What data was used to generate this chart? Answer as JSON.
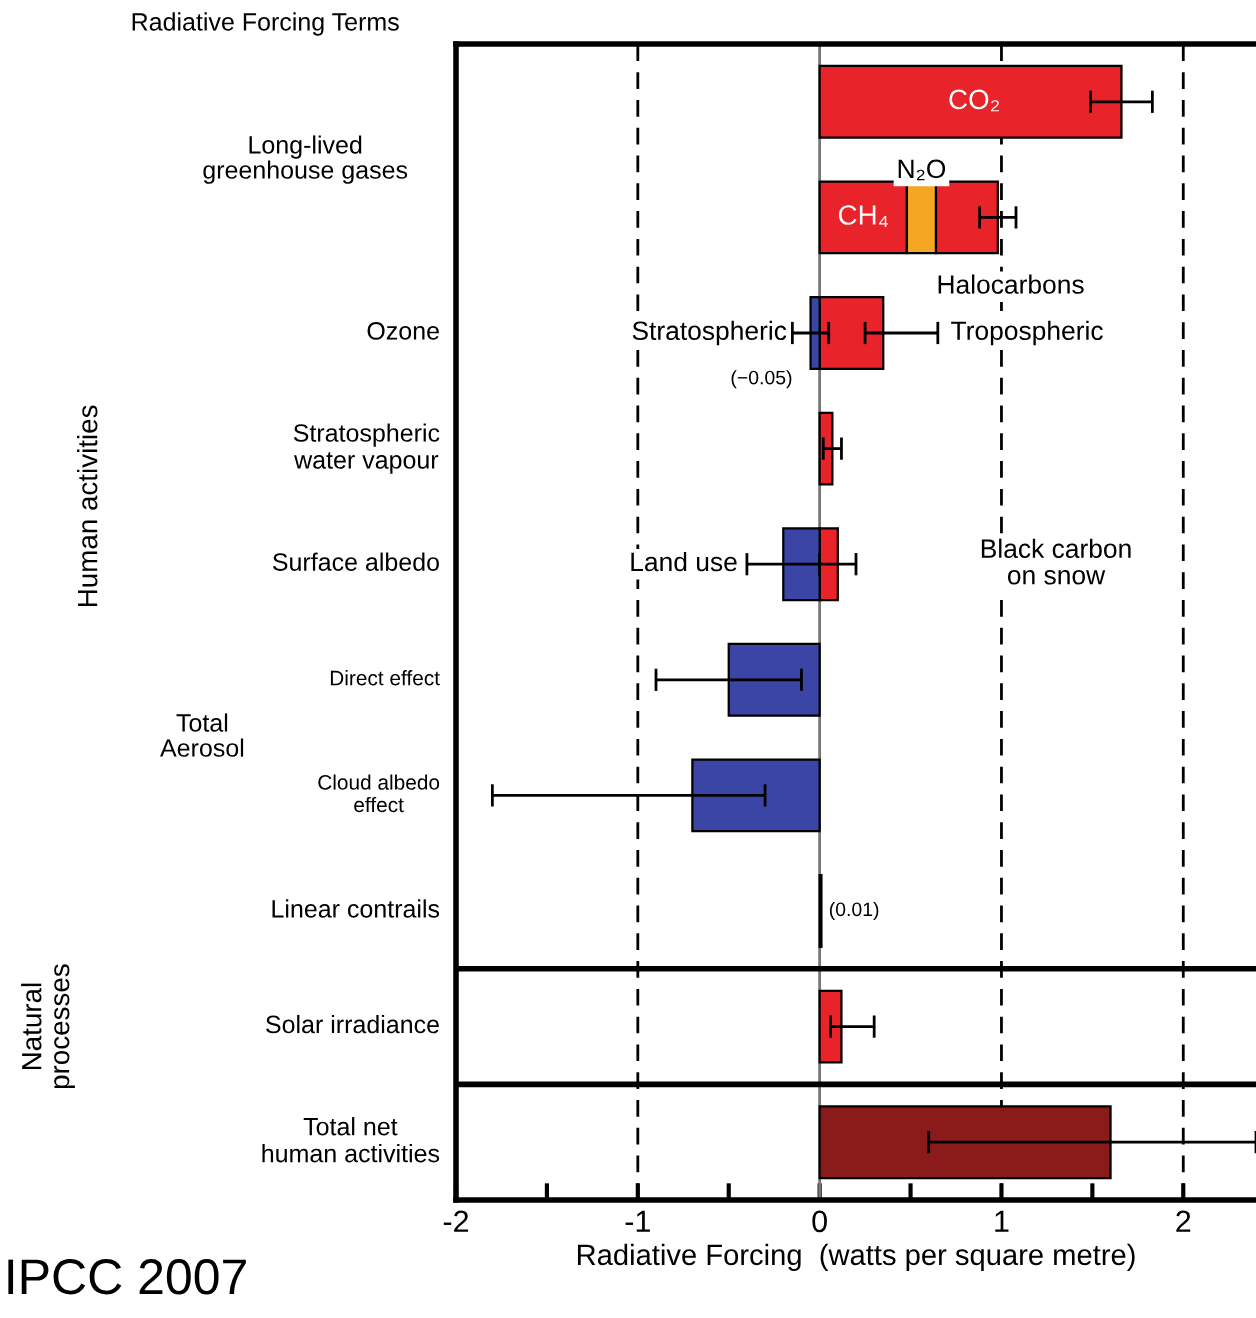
{
  "chart_data": {
    "type": "bar",
    "orientation": "horizontal",
    "stacked": true,
    "title": "Radiative Forcing Terms",
    "xlabel": "Radiative Forcing  (watts per square metre)",
    "categories": [
      null,
      null,
      "Ozone",
      "Stratospheric\nwater vapour",
      "Surface albedo",
      "Direct effect",
      "Cloud albedo\neffect",
      "Linear contrails",
      "Solar irradiance",
      "Total net\nhuman activities"
    ],
    "series": [
      {
        "colors": [
          "#e8232a",
          "#e8232a",
          "#e8232a",
          "#e8232a",
          "#e8232a",
          null,
          null,
          "#000000",
          "#e8232a",
          "#8b1a1a"
        ],
        "values": [
          1.66,
          0.48,
          0.35,
          0.07,
          0.1,
          null,
          null,
          0.01,
          0.12,
          1.6
        ],
        "errors": [
          [
            1.49,
            1.83
          ],
          null,
          [
            0.25,
            0.65
          ],
          [
            0.02,
            0.12
          ],
          [
            0.0,
            0.2
          ],
          null,
          null,
          null,
          [
            0.06,
            0.3
          ],
          [
            0.6,
            2.4
          ]
        ]
      },
      {
        "color": "#f5a623",
        "values": [
          null,
          0.16,
          null,
          null,
          null,
          null,
          null,
          null,
          null,
          null
        ]
      },
      {
        "color": "#e8232a",
        "values": [
          null,
          0.34,
          null,
          null,
          null,
          null,
          null,
          null,
          null,
          null
        ],
        "errors": [
          null,
          [
            0.88,
            1.08
          ],
          null,
          null,
          null,
          null,
          null,
          null,
          null,
          null
        ]
      },
      {
        "color": "#3b45a6",
        "values": [
          null,
          null,
          -0.05,
          null,
          -0.2,
          -0.5,
          -0.7,
          null,
          null,
          null
        ],
        "errors": [
          null,
          null,
          [
            -0.15,
            0.05
          ],
          null,
          [
            -0.4,
            0.0
          ],
          [
            -0.9,
            -0.1
          ],
          [
            -1.8,
            -0.3
          ],
          null,
          null,
          null
        ]
      }
    ],
    "xlim": [
      -2,
      2.4
    ],
    "xticks": [
      -2,
      {
        "value": -1.5,
        "label": null
      },
      -1,
      {
        "value": -0.5,
        "label": null
      },
      0,
      {
        "value": 0.5,
        "label": null
      },
      1,
      {
        "value": 1.5,
        "label": null
      },
      2
    ],
    "ref_lines": [
      {
        "axis": "x",
        "value": -1,
        "line_style": "dashed",
        "color": "#000000"
      },
      {
        "axis": "x",
        "value": 0,
        "line_style": "solid",
        "color": "#777777"
      },
      {
        "axis": "x",
        "value": 1,
        "line_style": "dashed",
        "color": "#000000"
      },
      {
        "axis": "x",
        "value": 2,
        "line_style": "dashed",
        "color": "#000000"
      }
    ],
    "annotations": [
      "CO₂",
      "N₂O",
      "CH₄",
      "Halocarbons",
      "Stratospheric",
      "(−0.05)",
      "Tropospheric",
      "Land use",
      "Black carbon\non snow",
      "(0.01)",
      "Long-lived\ngreenhouse gases",
      "Total\nAerosol",
      "Human activities",
      "Natural\nprocesses",
      "IPCC 2007"
    ],
    "grid": false,
    "legend": false
  }
}
